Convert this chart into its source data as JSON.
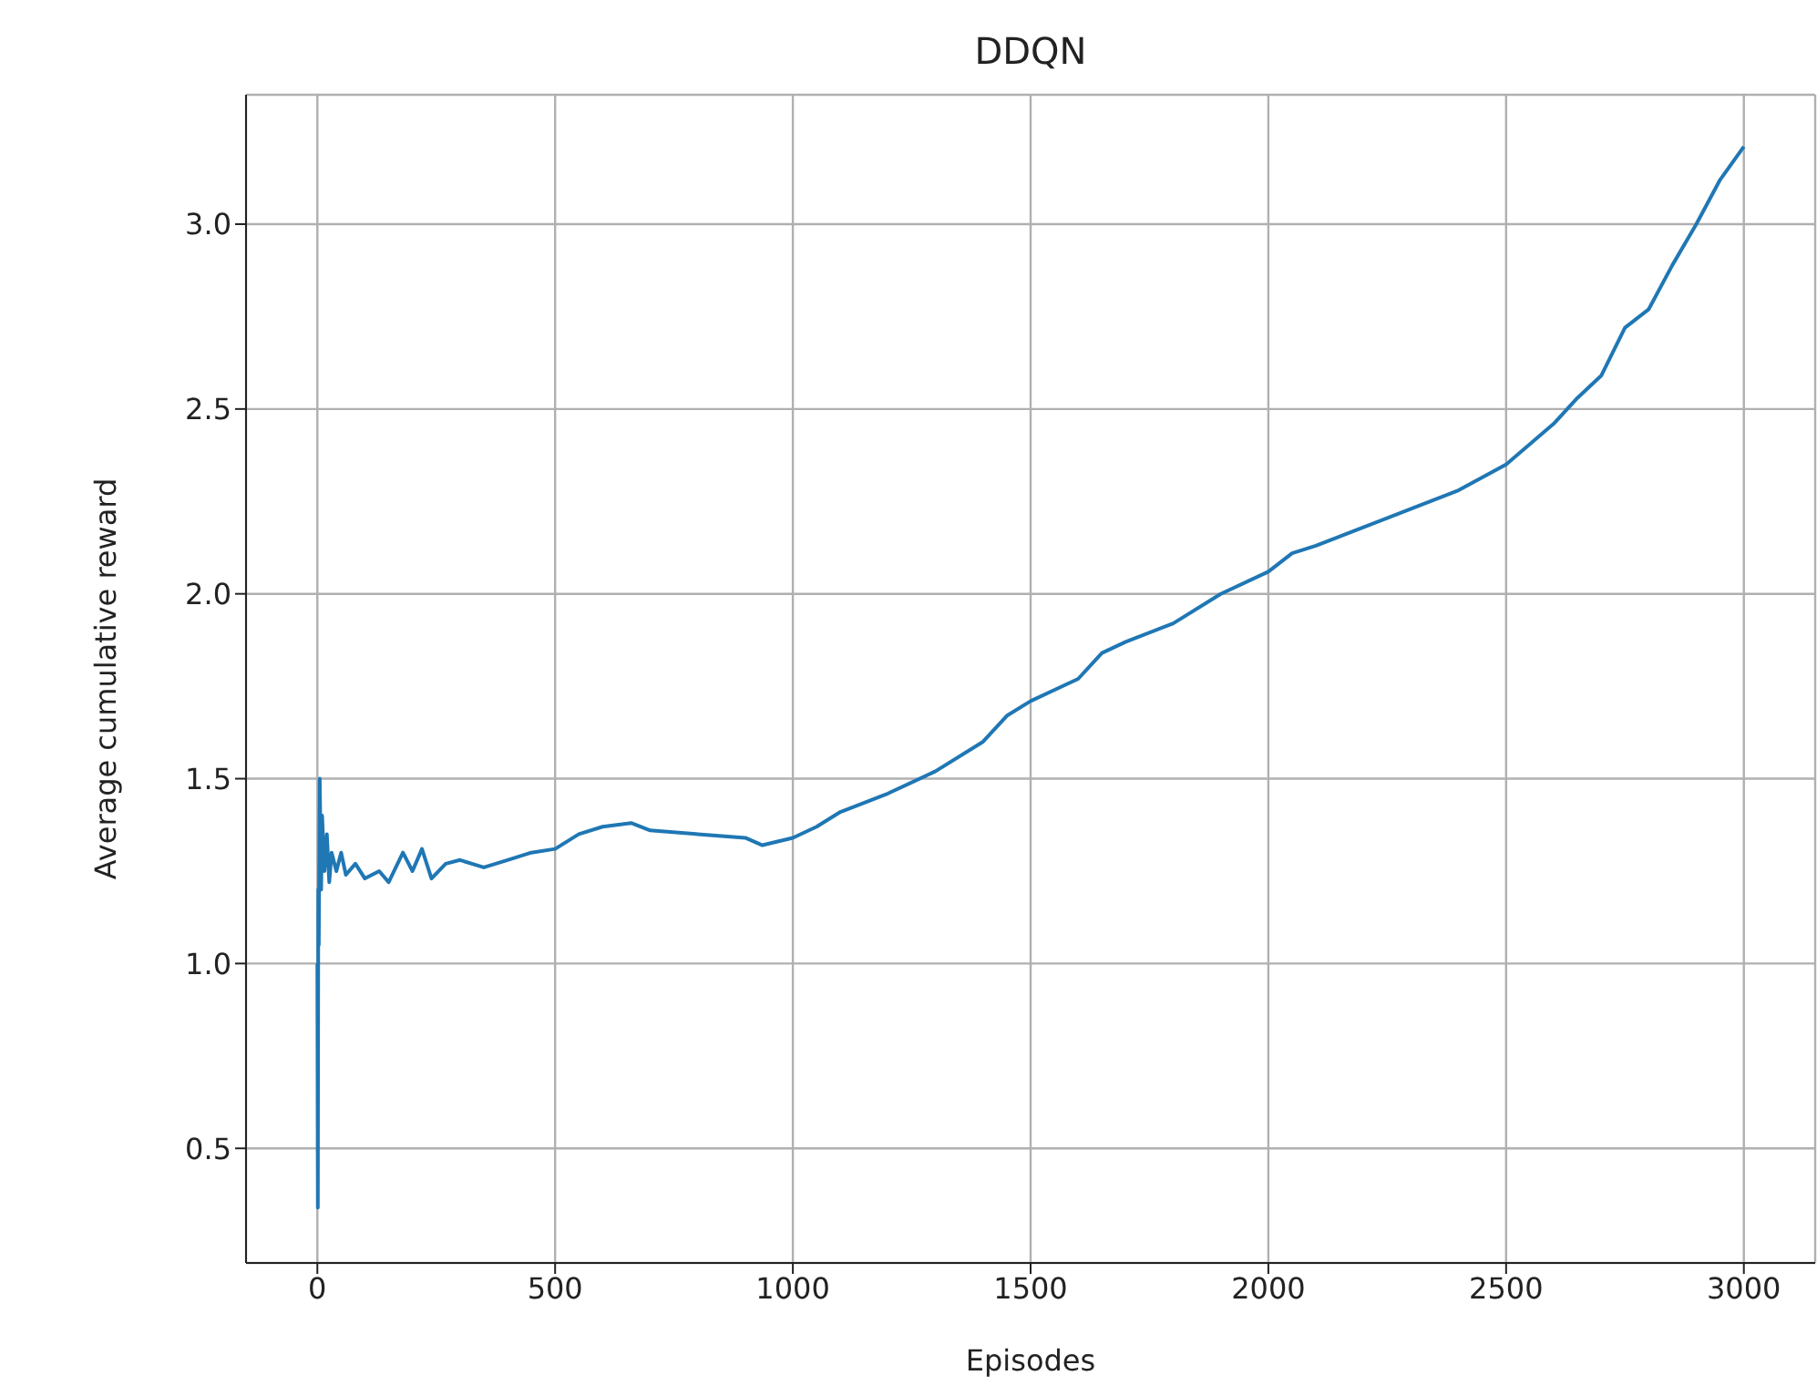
{
  "chart_data": {
    "type": "line",
    "title": "DDQN",
    "xlabel": "Episodes",
    "ylabel": "Average cumulative reward",
    "x": [
      0,
      1,
      2,
      3,
      5,
      8,
      10,
      15,
      20,
      25,
      30,
      40,
      50,
      60,
      80,
      100,
      130,
      150,
      180,
      200,
      220,
      240,
      270,
      300,
      350,
      400,
      450,
      500,
      550,
      600,
      660,
      700,
      800,
      900,
      936,
      1000,
      1050,
      1100,
      1200,
      1300,
      1400,
      1450,
      1500,
      1600,
      1650,
      1700,
      1800,
      1900,
      2000,
      2050,
      2100,
      2200,
      2300,
      2400,
      2500,
      2600,
      2650,
      2700,
      2750,
      2800,
      2850,
      2900,
      2950,
      3000
    ],
    "series": [
      {
        "color": "#1f77b4",
        "values": [
          1.0,
          0.34,
          1.2,
          1.05,
          1.5,
          1.2,
          1.4,
          1.25,
          1.35,
          1.22,
          1.3,
          1.25,
          1.3,
          1.24,
          1.27,
          1.23,
          1.25,
          1.22,
          1.3,
          1.25,
          1.31,
          1.23,
          1.27,
          1.28,
          1.26,
          1.28,
          1.3,
          1.31,
          1.35,
          1.37,
          1.38,
          1.36,
          1.35,
          1.34,
          1.32,
          1.34,
          1.37,
          1.41,
          1.46,
          1.52,
          1.6,
          1.67,
          1.71,
          1.77,
          1.84,
          1.87,
          1.92,
          2.0,
          2.06,
          2.11,
          2.13,
          2.18,
          2.23,
          2.28,
          2.35,
          2.46,
          2.53,
          2.59,
          2.72,
          2.77,
          2.89,
          3.0,
          3.12,
          3.21
        ]
      }
    ],
    "xlim": [
      -150,
      3150
    ],
    "xticks": [
      0,
      500,
      1000,
      1500,
      2000,
      2500,
      3000
    ],
    "ylim": [
      0.19,
      3.35
    ],
    "yticks": [
      {
        "value": 0.5,
        "label": "0.5"
      },
      {
        "value": 1.0,
        "label": "1.0"
      },
      {
        "value": 1.5,
        "label": "1.5"
      },
      {
        "value": 2.0,
        "label": "2.0"
      },
      {
        "value": 2.5,
        "label": "2.5"
      },
      {
        "value": 3.0,
        "label": "3.0"
      }
    ],
    "grid": true,
    "legend": false,
    "marker": "none",
    "line_style": "solid"
  }
}
